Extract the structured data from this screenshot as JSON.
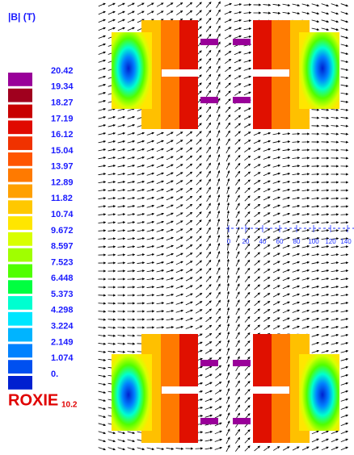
{
  "legend": {
    "title": "|B|  (T)",
    "labels": [
      "20.42",
      "19.34",
      "18.27",
      "17.19",
      "16.12",
      "15.04",
      "13.97",
      "12.89",
      "11.82",
      "10.74",
      "9.672",
      "8.597",
      "7.523",
      "6.448",
      "5.373",
      "4.298",
      "3.224",
      "2.149",
      "1.074",
      "0."
    ],
    "colors": [
      "#990099",
      "#a0001e",
      "#c80000",
      "#e00a00",
      "#f03200",
      "#ff5500",
      "#ff7a00",
      "#ffa000",
      "#ffc800",
      "#ffe600",
      "#d8ff00",
      "#a0ff00",
      "#50ff00",
      "#00ff40",
      "#00ffd0",
      "#00e6ff",
      "#00b4ff",
      "#0082ff",
      "#0050f0",
      "#0020d0"
    ]
  },
  "ruler": {
    "labels": [
      "0",
      "20",
      "40",
      "60",
      "80",
      "100",
      "120",
      "140"
    ]
  },
  "brand": {
    "name": "ROXIE",
    "version": "10.2"
  }
}
